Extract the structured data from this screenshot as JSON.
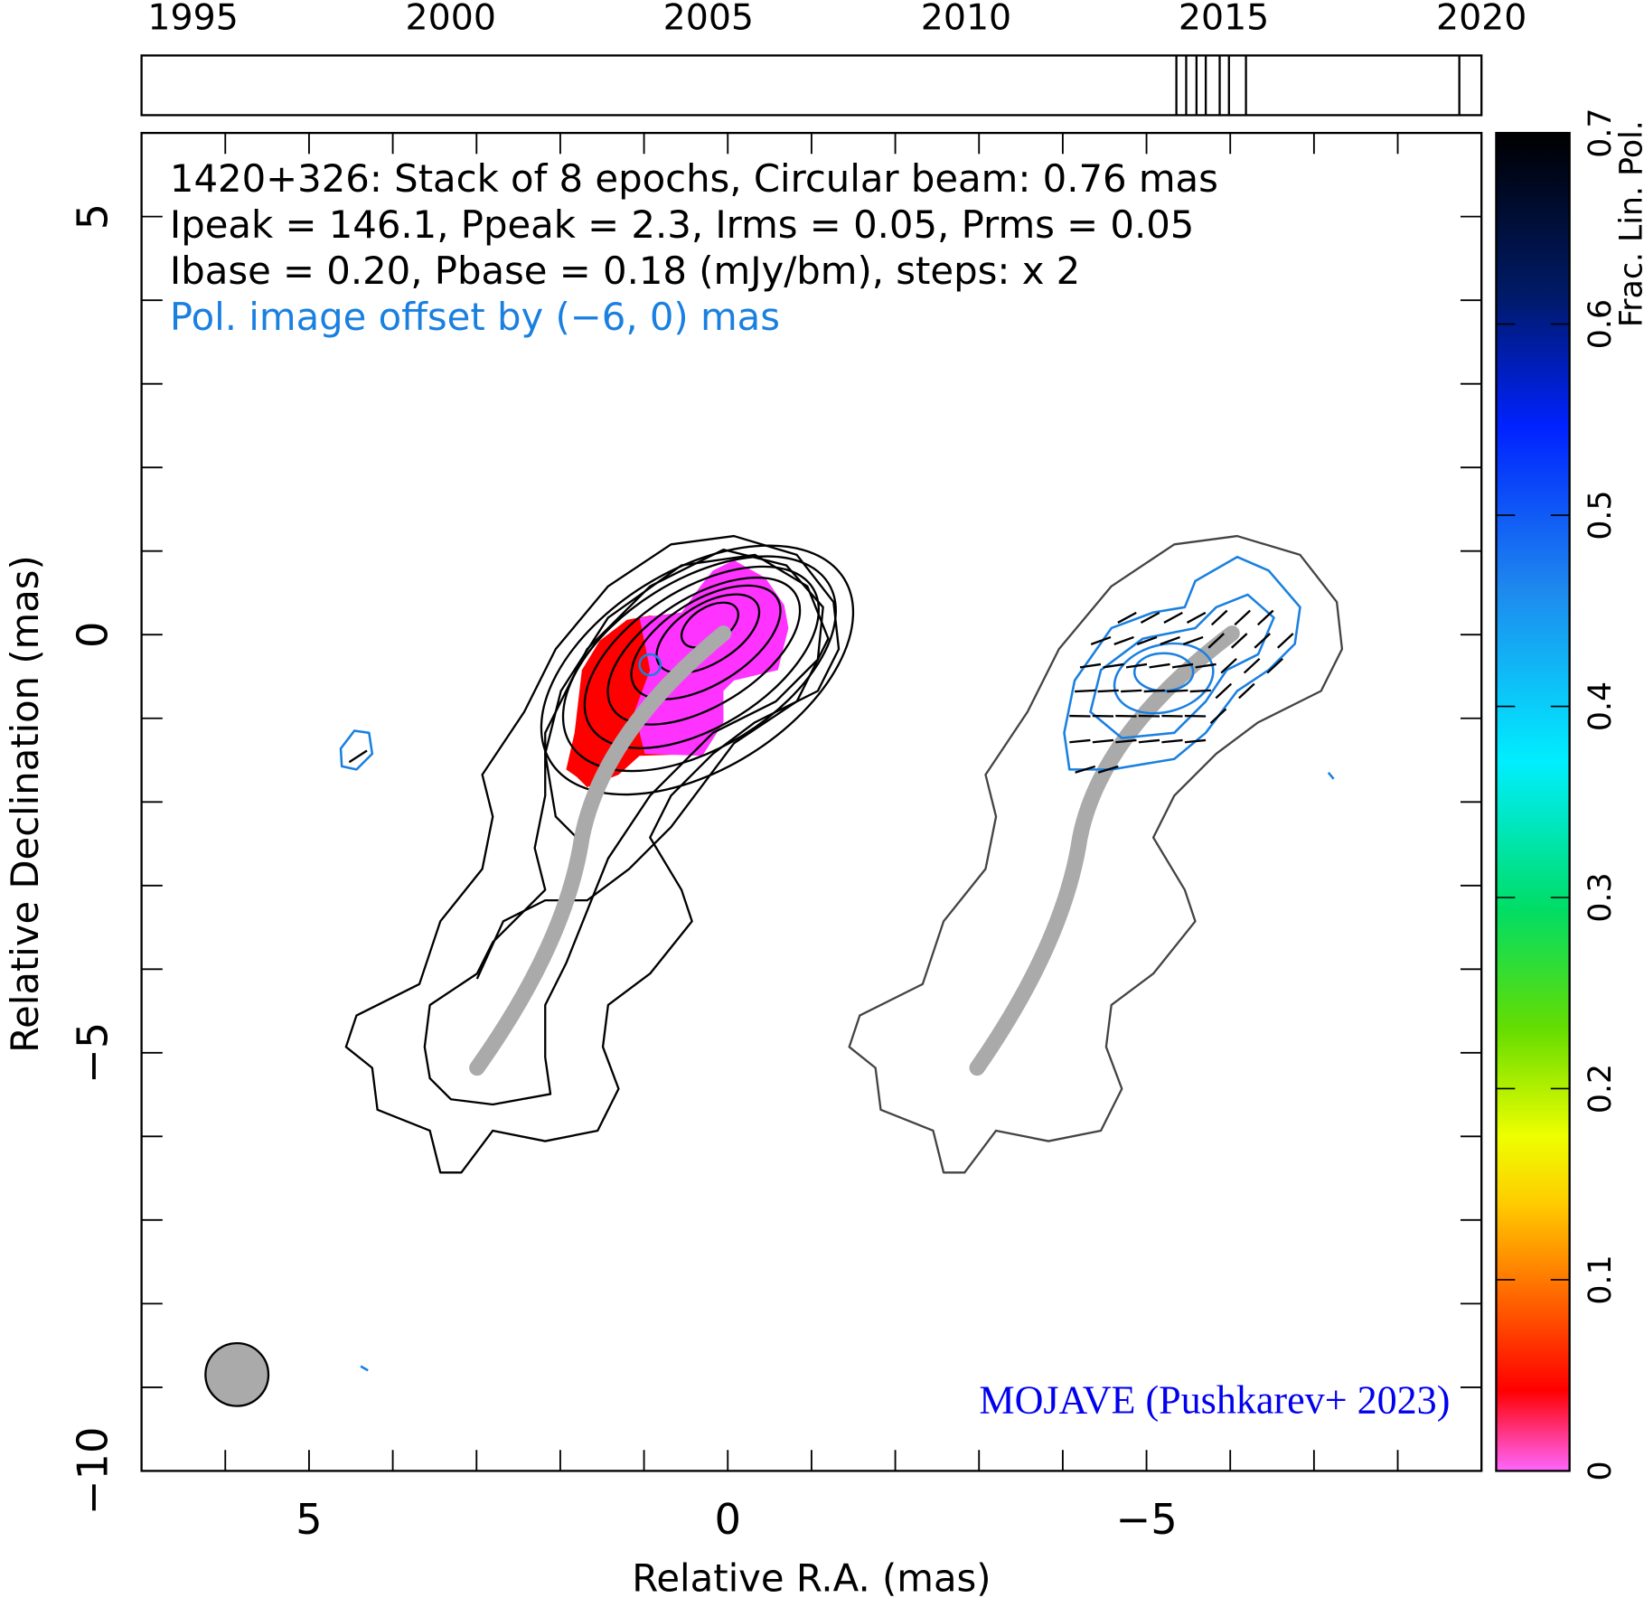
{
  "chart_data": [
    {
      "type": "timeline",
      "xlim": [
        1994,
        2020
      ],
      "xticks": [
        1995,
        2000,
        2005,
        2010,
        2015,
        2020
      ],
      "epochs": [
        2014.08,
        2014.27,
        2014.47,
        2014.65,
        2014.92,
        2015.1,
        2015.43,
        2019.57
      ]
    },
    {
      "type": "image",
      "title_lines": [
        "1420+326: Stack of 8 epochs, Circular beam: 0.76 mas",
        "Ipeak = 146.1, Ppeak = 2.3, Irms = 0.05, Prms = 0.05",
        "Ibase = 0.20, Pbase = 0.18 (mJy/bm), steps: x 2"
      ],
      "annotation": "Pol. image offset by (−6, 0) mas",
      "credit": "MOJAVE (Pushkarev+ 2023)",
      "xlabel": "Relative R.A. (mas)",
      "ylabel": "Relative Declination (mas)",
      "xlim": [
        7,
        -9
      ],
      "ylim": [
        -10,
        6
      ],
      "xticks": [
        5,
        0,
        {
          "value": -5,
          "label": "−5"
        }
      ],
      "yticks": [
        5,
        0,
        {
          "value": -5,
          "label": "−5"
        },
        {
          "value": -10,
          "label": "−10"
        }
      ],
      "minor_xticks": [
        6,
        4,
        3,
        2,
        1,
        -1,
        -2,
        -3,
        -4,
        -6,
        -7,
        -8
      ],
      "minor_yticks": [
        4,
        3,
        2,
        1,
        -1,
        -2,
        -3,
        -4,
        -6,
        -7,
        -8,
        -9
      ]
    },
    {
      "type": "colorbar",
      "label": "Frac. Lin. Pol.",
      "ylim": [
        0,
        0.7
      ],
      "yticks": [
        0,
        0.1,
        0.2,
        0.3,
        0.4,
        0.5,
        0.6,
        0.7
      ]
    }
  ]
}
